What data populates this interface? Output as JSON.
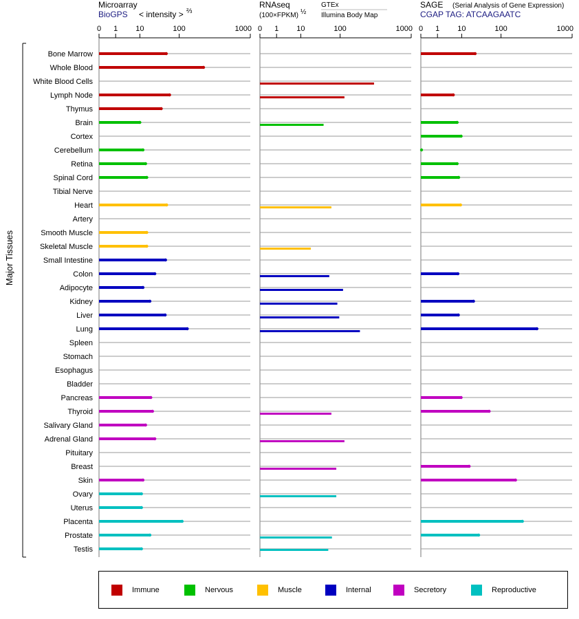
{
  "y_axis_label": "Major Tissues",
  "panels": [
    {
      "key": "microarray",
      "title": "Microarray",
      "subtitle_source": "BioGPS",
      "subtitle_extra": "< intensity >",
      "subtitle_exponent": "⅔",
      "ticks": [
        "0",
        "1",
        "10",
        "100",
        "1000"
      ]
    },
    {
      "key": "rnaseq",
      "title": "RNAseq",
      "subtitle_extra": "(100×FPKM)",
      "subtitle_exponent": "½",
      "sublabel_top": "GTEx",
      "sublabel_bottom": "Illumina Body Map",
      "ticks": [
        "0",
        "1",
        "10",
        "100",
        "1000"
      ]
    },
    {
      "key": "sage",
      "title": "SAGE",
      "title_note": "(Serial Analysis of Gene Expression)",
      "subtitle_source": "CGAP TAG: ATCAAGAATC",
      "ticks": [
        "0",
        "1",
        "10",
        "100",
        "1000"
      ]
    }
  ],
  "legend": [
    {
      "name": "Immune",
      "color": "#c00000"
    },
    {
      "name": "Nervous",
      "color": "#00c000"
    },
    {
      "name": "Muscle",
      "color": "#ffc000"
    },
    {
      "name": "Internal",
      "color": "#0000c0"
    },
    {
      "name": "Secretory",
      "color": "#c000c0"
    },
    {
      "name": "Reproductive",
      "color": "#00c0c0"
    }
  ],
  "chart_data": {
    "type": "bar",
    "orientation": "horizontal",
    "x_scale": "log",
    "xlim": [
      0,
      1000
    ],
    "categories": [
      "Bone Marrow",
      "Whole Blood",
      "White Blood Cells",
      "Lymph Node",
      "Thymus",
      "Brain",
      "Cortex",
      "Cerebellum",
      "Retina",
      "Spinal Cord",
      "Tibial Nerve",
      "Heart",
      "Artery",
      "Smooth Muscle",
      "Skeletal Muscle",
      "Small Intestine",
      "Colon",
      "Adipocyte",
      "Kidney",
      "Liver",
      "Lung",
      "Spleen",
      "Stomach",
      "Esophagus",
      "Bladder",
      "Pancreas",
      "Thyroid",
      "Salivary Gland",
      "Adrenal Gland",
      "Pituitary",
      "Breast",
      "Skin",
      "Ovary",
      "Uterus",
      "Placenta",
      "Prostate",
      "Testis"
    ],
    "groups": [
      "Immune",
      "Immune",
      "Immune",
      "Immune",
      "Immune",
      "Nervous",
      "Nervous",
      "Nervous",
      "Nervous",
      "Nervous",
      "Nervous",
      "Muscle",
      "Muscle",
      "Muscle",
      "Muscle",
      "Internal",
      "Internal",
      "Internal",
      "Internal",
      "Internal",
      "Internal",
      "Internal",
      "Internal",
      "Internal",
      "Internal",
      "Secretory",
      "Secretory",
      "Secretory",
      "Secretory",
      "Secretory",
      "Secretory",
      "Secretory",
      "Reproductive",
      "Reproductive",
      "Reproductive",
      "Reproductive",
      "Reproductive"
    ],
    "series": [
      {
        "name": "Microarray",
        "values": [
          47,
          220,
          null,
          57,
          35,
          10,
          null,
          12,
          14,
          15,
          null,
          48,
          null,
          15,
          15,
          45,
          24,
          12,
          18,
          44,
          130,
          null,
          null,
          null,
          null,
          19,
          21,
          14,
          24,
          null,
          null,
          12,
          11,
          11,
          110,
          18,
          11
        ]
      },
      {
        "name": "RNAseq GTEx",
        "values": [
          null,
          null,
          null,
          null,
          null,
          null,
          null,
          null,
          null,
          null,
          null,
          null,
          null,
          null,
          null,
          null,
          null,
          null,
          null,
          null,
          null,
          null,
          null,
          null,
          null,
          null,
          null,
          null,
          null,
          null,
          null,
          null,
          null,
          null,
          null,
          null,
          50
        ]
      },
      {
        "name": "RNAseq Illumina Body Map",
        "values": [
          null,
          null,
          300,
          115,
          null,
          38,
          null,
          null,
          null,
          null,
          null,
          60,
          null,
          null,
          18,
          null,
          53,
          110,
          85,
          95,
          190,
          null,
          null,
          null,
          null,
          null,
          60,
          null,
          115,
          null,
          80,
          null,
          80,
          null,
          null,
          62,
          null
        ]
      },
      {
        "name": "SAGE",
        "values": [
          22,
          null,
          null,
          4.5,
          null,
          6.5,
          9.5,
          0.02,
          6.5,
          7.5,
          null,
          9,
          null,
          null,
          null,
          null,
          7,
          null,
          20,
          7.3,
          320,
          null,
          null,
          null,
          null,
          9.5,
          50,
          null,
          null,
          null,
          15.5,
          160,
          null,
          null,
          200,
          27,
          null
        ]
      }
    ]
  }
}
